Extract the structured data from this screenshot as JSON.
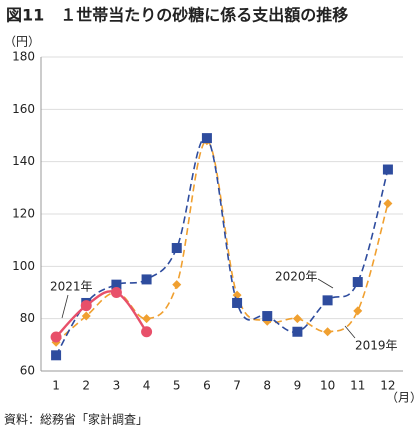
{
  "chart_data": {
    "type": "line",
    "title": "図11　１世帯当たりの砂糖に係る支出額の推移",
    "y_unit": "（円）",
    "x_unit": "（月）",
    "source": "資料：総務省「家計調査」",
    "categories": [
      "1",
      "2",
      "3",
      "4",
      "5",
      "6",
      "7",
      "8",
      "9",
      "10",
      "11",
      "12"
    ],
    "ylim": [
      60,
      180
    ],
    "yticks": [
      60,
      80,
      100,
      120,
      140,
      160,
      180
    ],
    "grid": true,
    "series": [
      {
        "name": "2019年",
        "color": "#f0a030",
        "marker": "diamond",
        "dashed": true,
        "values": [
          71,
          81,
          90,
          80,
          93,
          148,
          89,
          79,
          80,
          75,
          83,
          124
        ]
      },
      {
        "name": "2020年",
        "color": "#2e4c9e",
        "marker": "square",
        "dashed": true,
        "values": [
          66,
          86,
          93,
          95,
          107,
          149,
          86,
          81,
          75,
          87,
          94,
          137
        ]
      },
      {
        "name": "2021年",
        "color": "#e8506a",
        "marker": "circle",
        "dashed": false,
        "values": [
          73,
          85,
          90,
          75,
          null,
          null,
          null,
          null,
          null,
          null,
          null,
          null
        ]
      }
    ]
  }
}
